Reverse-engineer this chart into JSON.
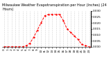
{
  "title": "Milwaukee Weather Evapotranspiration per Hour (Inches) (24 Hours)",
  "hours": [
    0,
    1,
    2,
    3,
    4,
    5,
    6,
    7,
    8,
    9,
    10,
    11,
    12,
    13,
    14,
    15,
    16,
    17,
    18,
    19,
    20,
    21,
    22,
    23
  ],
  "values": [
    0.0,
    0.0,
    0.0,
    0.0,
    0.0,
    0.0,
    0.001,
    0.003,
    0.008,
    0.014,
    0.02,
    0.026,
    0.027,
    0.027,
    0.027,
    0.027,
    0.022,
    0.015,
    0.012,
    0.009,
    0.006,
    0.002,
    0.001,
    0.0
  ],
  "line_color": "#ff0000",
  "line_style": "--",
  "marker": ".",
  "marker_color": "#ff0000",
  "bg_color": "#ffffff",
  "grid_color": "#aaaaaa",
  "ylim": [
    0,
    0.03
  ],
  "yticks": [
    0.0,
    0.005,
    0.01,
    0.015,
    0.02,
    0.025,
    0.03
  ],
  "title_fontsize": 3.5,
  "tick_fontsize": 3.0
}
